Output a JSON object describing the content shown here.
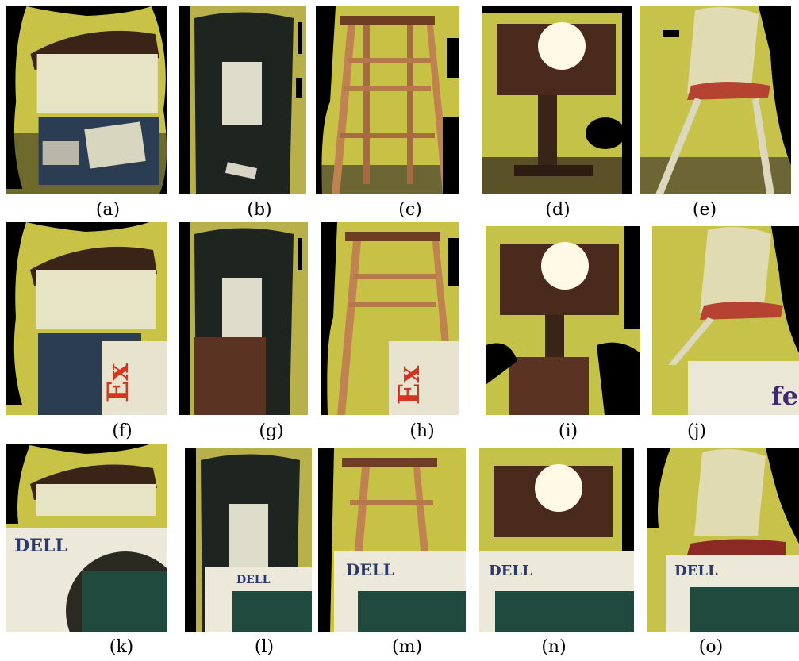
{
  "panels": [
    {
      "caption": "(a)",
      "subject": "stacked-boxes"
    },
    {
      "caption": "(b)",
      "subject": "trash-can"
    },
    {
      "caption": "(c)",
      "subject": "wooden-stool"
    },
    {
      "caption": "(d)",
      "subject": "dresser"
    },
    {
      "caption": "(e)",
      "subject": "folding-chair"
    },
    {
      "caption": "(f)",
      "subject": "stacked-boxes",
      "occluder": "fedex-box"
    },
    {
      "caption": "(g)",
      "subject": "trash-can",
      "occluder": "fedex-box"
    },
    {
      "caption": "(h)",
      "subject": "wooden-stool",
      "occluder": "fedex-box"
    },
    {
      "caption": "(i)",
      "subject": "dresser",
      "occluder": "fedex-box"
    },
    {
      "caption": "(j)",
      "subject": "folding-chair",
      "occluder": "fedex-box"
    },
    {
      "caption": "(k)",
      "subject": "stacked-boxes",
      "occluder": "dell-box"
    },
    {
      "caption": "(l)",
      "subject": "trash-can",
      "occluder": "dell-box"
    },
    {
      "caption": "(m)",
      "subject": "wooden-stool",
      "occluder": "dell-box"
    },
    {
      "caption": "(n)",
      "subject": "dresser",
      "occluder": "dell-box"
    },
    {
      "caption": "(o)",
      "subject": "folding-chair",
      "occluder": "dell-box"
    }
  ],
  "occluder_text": {
    "fedex_logo": "Ex",
    "fedex_logo_alt": "fed",
    "dell_logo": "DELL"
  }
}
